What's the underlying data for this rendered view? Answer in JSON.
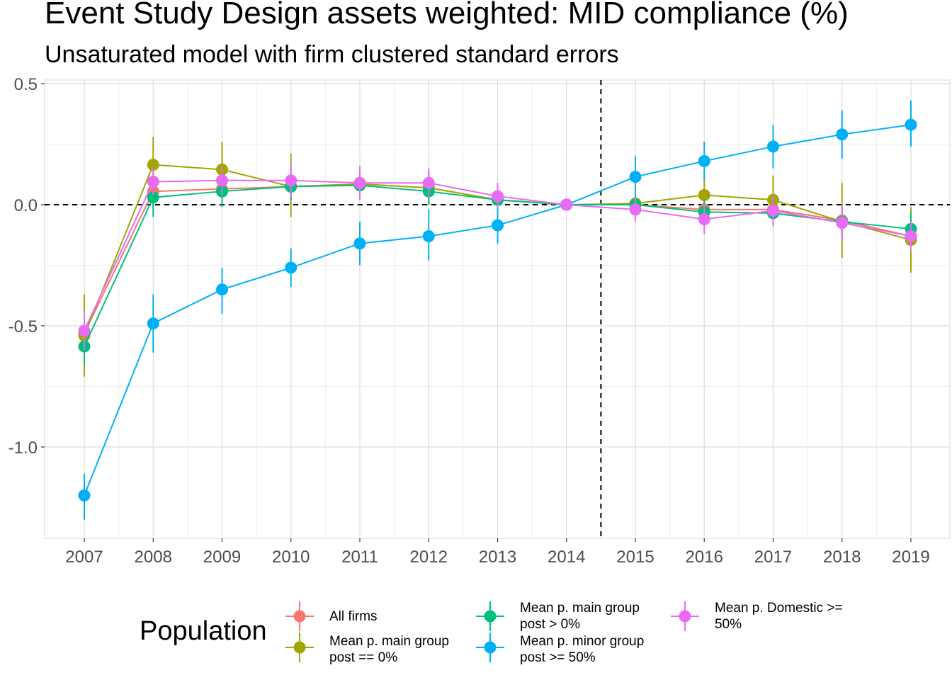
{
  "title": "Event Study Design assets weighted: MID compliance (%)",
  "subtitle": "Unsaturated model with firm clustered standard errors",
  "legend": {
    "title": "Population",
    "position": "bottom"
  },
  "chart_data": {
    "type": "line",
    "title": "Event Study Design assets weighted: MID compliance (%)",
    "subtitle": "Unsaturated model with firm clustered standard errors",
    "xlabel": "",
    "ylabel": "",
    "x": [
      2007,
      2008,
      2009,
      2010,
      2011,
      2012,
      2013,
      2014,
      2015,
      2016,
      2017,
      2018,
      2019
    ],
    "x_tick_labels": [
      "2007",
      "2008",
      "2009",
      "2010",
      "2011",
      "2012",
      "2013",
      "2014",
      "2015",
      "2016",
      "2017",
      "2018",
      "2019"
    ],
    "y_ticks": [
      0.5,
      0.0,
      -0.5,
      -1.0
    ],
    "y_tick_labels": [
      "0.5",
      "0.0",
      "-0.5",
      "-1.0"
    ],
    "ylim": [
      -1.38,
      0.51
    ],
    "xlim": [
      2006.45,
      2019.6
    ],
    "grid": true,
    "reference_lines": {
      "h": 0.0,
      "v": 2014.5,
      "style": "dashed"
    },
    "series": [
      {
        "name": "All firms",
        "color": "#F8766D",
        "values": [
          -0.53,
          0.055,
          0.065,
          0.075,
          0.085,
          0.07,
          0.02,
          0.0,
          0.0,
          -0.02,
          -0.02,
          -0.065,
          -0.13
        ],
        "lower": [
          -0.65,
          -0.01,
          0.01,
          0.02,
          0.03,
          0.01,
          -0.02,
          0.0,
          -0.04,
          -0.08,
          -0.08,
          -0.13,
          -0.2
        ],
        "upper": [
          -0.42,
          0.12,
          0.12,
          0.13,
          0.14,
          0.13,
          0.06,
          0.0,
          0.04,
          0.04,
          0.04,
          0.0,
          -0.06
        ]
      },
      {
        "name": "Mean p. main group\npost == 0%",
        "color": "#A3A500",
        "values": [
          -0.54,
          0.165,
          0.145,
          0.075,
          0.085,
          0.07,
          0.02,
          0.0,
          0.005,
          0.04,
          0.02,
          -0.07,
          -0.145
        ],
        "lower": [
          -0.71,
          0.05,
          0.03,
          -0.05,
          0.02,
          0.0,
          -0.03,
          0.0,
          -0.04,
          -0.04,
          -0.07,
          -0.22,
          -0.28
        ],
        "upper": [
          -0.37,
          0.28,
          0.26,
          0.21,
          0.15,
          0.14,
          0.07,
          0.0,
          0.05,
          0.12,
          0.12,
          0.09,
          -0.01
        ]
      },
      {
        "name": "Mean p. main group\npost > 0%",
        "color": "#00BF7D",
        "values": [
          -0.585,
          0.03,
          0.055,
          0.075,
          0.08,
          0.055,
          0.02,
          0.0,
          0.0,
          -0.03,
          -0.035,
          -0.07,
          -0.1
        ],
        "lower": [
          -0.66,
          -0.05,
          -0.01,
          0.02,
          0.02,
          0.0,
          -0.02,
          0.0,
          -0.04,
          -0.08,
          -0.09,
          -0.13,
          -0.17
        ],
        "upper": [
          -0.51,
          0.11,
          0.12,
          0.13,
          0.14,
          0.11,
          0.06,
          0.0,
          0.04,
          0.02,
          0.02,
          -0.01,
          -0.03
        ]
      },
      {
        "name": "Mean p. minor group\npost >= 50%",
        "color": "#00B0F6",
        "values": [
          -1.2,
          -0.49,
          -0.35,
          -0.26,
          -0.16,
          -0.13,
          -0.085,
          0.0,
          0.115,
          0.18,
          0.24,
          0.29,
          0.33
        ],
        "lower": [
          -1.3,
          -0.61,
          -0.45,
          -0.34,
          -0.25,
          -0.23,
          -0.16,
          0.0,
          0.03,
          0.1,
          0.15,
          0.19,
          0.24
        ],
        "upper": [
          -1.11,
          -0.37,
          -0.26,
          -0.18,
          -0.07,
          -0.02,
          -0.01,
          0.0,
          0.2,
          0.26,
          0.33,
          0.39,
          0.43
        ]
      },
      {
        "name": "Mean p. Domestic >=\n50%",
        "color": "#E76BF3",
        "values": [
          -0.52,
          0.095,
          0.1,
          0.1,
          0.09,
          0.09,
          0.035,
          0.0,
          -0.02,
          -0.06,
          -0.025,
          -0.075,
          -0.13
        ],
        "lower": [
          -0.6,
          0.04,
          0.04,
          0.03,
          0.02,
          0.03,
          -0.01,
          0.0,
          -0.07,
          -0.12,
          -0.09,
          -0.15,
          -0.19
        ],
        "upper": [
          -0.44,
          0.15,
          0.16,
          0.17,
          0.16,
          0.15,
          0.09,
          0.0,
          0.03,
          0.0,
          0.04,
          0.0,
          -0.07
        ]
      }
    ]
  }
}
